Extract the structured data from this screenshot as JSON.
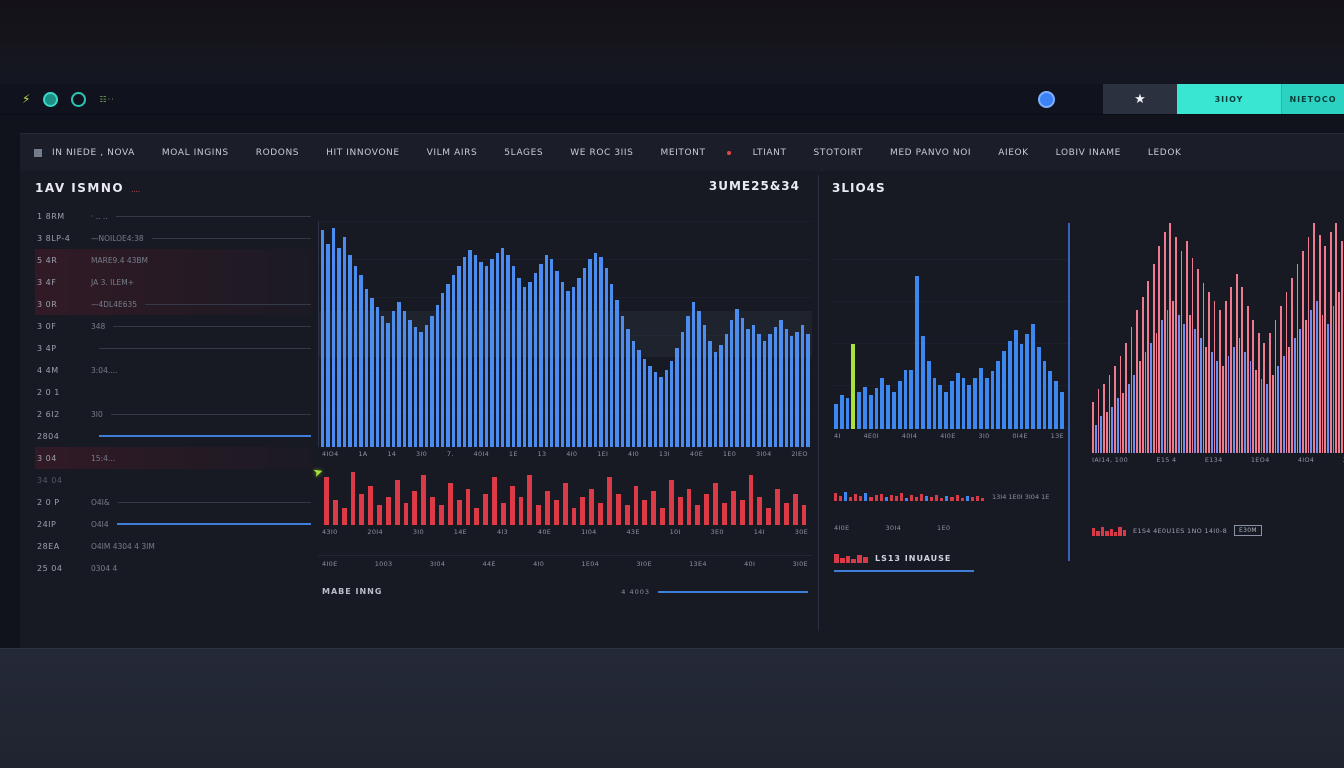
{
  "toolbar": {
    "accent": "#39e6d2",
    "right": {
      "teal_primary_label": "3IIOY",
      "teal_secondary_label": "NIETOCO"
    }
  },
  "nav": {
    "left_items": [
      "IN NIEDE , NOVA",
      "MOAL INGINS",
      "RODONS",
      "HIT INNOVONE",
      "VILM AIRS",
      "5LAGES",
      "WE ROC 3IIS",
      "MEITONT"
    ],
    "right_items": [
      "LTIANT",
      "STOTOIRT",
      "MED PANVO NOI",
      "AIEOK",
      "LOBIV INAME",
      "LEDOK"
    ]
  },
  "left_panel": {
    "title": "1AV ISMNO",
    "title_note": "....",
    "rows": [
      {
        "t": "1 8RM",
        "v": "· .. ..",
        "line": "grey",
        "glow": false,
        "dim": false
      },
      {
        "t": "3 8LP-4",
        "v": "—NOILOE4:38",
        "line": "grey",
        "glow": false,
        "dim": false
      },
      {
        "t": "5 4R",
        "v": "MARE9.4 43BM",
        "line": "none",
        "glow": true,
        "dim": false
      },
      {
        "t": "3 4F",
        "v": "JA 3. ILEM+",
        "line": "none",
        "glow": true,
        "dim": false
      },
      {
        "t": "3 0R",
        "v": "—4DL4E635",
        "line": "grey",
        "glow": true,
        "dim": false
      },
      {
        "t": "3 0F",
        "v": "348",
        "line": "grey",
        "glow": false,
        "dim": false
      },
      {
        "t": "3 4P",
        "v": "",
        "line": "grey",
        "glow": false,
        "dim": false
      },
      {
        "t": "4 4M",
        "v": "3:04....",
        "line": "none",
        "glow": false,
        "dim": false
      },
      {
        "t": "2 0 1",
        "v": "",
        "line": "none",
        "glow": false,
        "dim": false
      },
      {
        "t": "2 6I2",
        "v": "3I0",
        "line": "grey",
        "glow": false,
        "dim": false
      },
      {
        "t": "2804",
        "v": "",
        "line": "blue",
        "glow": false,
        "dim": false
      },
      {
        "t": "3 04",
        "v": "15:4...",
        "line": "none",
        "glow": true,
        "dim": false
      },
      {
        "t": "34 04",
        "v": "",
        "line": "none",
        "glow": false,
        "dim": true
      },
      {
        "t": "2 0 P",
        "v": "O4I&",
        "line": "grey",
        "glow": false,
        "dim": false
      },
      {
        "t": "24IP",
        "v": "O4I4",
        "line": "blue",
        "glow": false,
        "dim": false
      },
      {
        "t": "28EA",
        "v": "O4IM   4304   4 3IM",
        "line": "none",
        "glow": false,
        "dim": false
      },
      {
        "t": "25 04",
        "v": "0304  4",
        "line": "none",
        "glow": false,
        "dim": false
      }
    ]
  },
  "center_panel": {
    "header_value": "3UME25&34",
    "main_chart": {
      "colors": [
        "#4a8cf0"
      ],
      "values": [
        0.96,
        0.9,
        0.97,
        0.88,
        0.93,
        0.85,
        0.8,
        0.76,
        0.7,
        0.66,
        0.62,
        0.58,
        0.55,
        0.6,
        0.64,
        0.6,
        0.56,
        0.53,
        0.51,
        0.54,
        0.58,
        0.63,
        0.68,
        0.72,
        0.76,
        0.8,
        0.84,
        0.87,
        0.85,
        0.82,
        0.8,
        0.83,
        0.86,
        0.88,
        0.85,
        0.8,
        0.75,
        0.71,
        0.73,
        0.77,
        0.81,
        0.85,
        0.83,
        0.78,
        0.73,
        0.69,
        0.71,
        0.75,
        0.79,
        0.83,
        0.86,
        0.84,
        0.79,
        0.72,
        0.65,
        0.58,
        0.52,
        0.47,
        0.43,
        0.39,
        0.36,
        0.33,
        0.31,
        0.34,
        0.38,
        0.44,
        0.51,
        0.58,
        0.64,
        0.6,
        0.54,
        0.47,
        0.42,
        0.45,
        0.5,
        0.56,
        0.61,
        0.57,
        0.52,
        0.54,
        0.5,
        0.47,
        0.5,
        0.53,
        0.56,
        0.52,
        0.49,
        0.51,
        0.54,
        0.5
      ]
    },
    "main_ticks": [
      "4IO4",
      "1A",
      "14",
      "3I0",
      "7.",
      "40I4",
      "1E",
      "13",
      "4I0",
      "1EI",
      "4I0",
      "13I",
      "40E",
      "1E0",
      "3I04",
      "2IEO"
    ],
    "volume_chart": {
      "colors": [
        "#dd3a47"
      ],
      "values": [
        0.85,
        0.45,
        0.3,
        0.95,
        0.55,
        0.7,
        0.35,
        0.5,
        0.8,
        0.4,
        0.6,
        0.9,
        0.5,
        0.35,
        0.75,
        0.45,
        0.65,
        0.3,
        0.55,
        0.85,
        0.4,
        0.7,
        0.5,
        0.9,
        0.35,
        0.6,
        0.45,
        0.75,
        0.3,
        0.5,
        0.65,
        0.4,
        0.85,
        0.55,
        0.35,
        0.7,
        0.45,
        0.6,
        0.3,
        0.8,
        0.5,
        0.65,
        0.35,
        0.55,
        0.75,
        0.4,
        0.6,
        0.45,
        0.9,
        0.5,
        0.3,
        0.65,
        0.4,
        0.55,
        0.35
      ]
    },
    "volume_ticks": [
      "43I0",
      "20I4",
      "3I0",
      "14E",
      "4I3",
      "40E",
      "1I04",
      "43E",
      "10I",
      "3E0",
      "14I",
      "30E"
    ],
    "lower_ticks": [
      "4I0E",
      "1003",
      "3I04",
      "44E",
      "4I0",
      "1E04",
      "3I0E",
      "13E4",
      "40I",
      "3I0E"
    ],
    "footer_label": "MABE INNG",
    "footer_value": "4 4003"
  },
  "mid_panel": {
    "title": "3LIO4S",
    "chart": {
      "colors": [
        "#3d87f0"
      ],
      "highlight_index": 3,
      "highlight_color": "#a9e23b",
      "values": [
        0.15,
        0.2,
        0.18,
        0.5,
        0.22,
        0.25,
        0.2,
        0.24,
        0.3,
        0.26,
        0.22,
        0.28,
        0.35,
        0.35,
        0.9,
        0.55,
        0.4,
        0.3,
        0.26,
        0.22,
        0.28,
        0.33,
        0.3,
        0.26,
        0.3,
        0.36,
        0.3,
        0.34,
        0.4,
        0.46,
        0.52,
        0.58,
        0.5,
        0.56,
        0.62,
        0.48,
        0.4,
        0.34,
        0.28,
        0.22
      ]
    },
    "ticks": [
      "4I",
      "4E0I",
      "40I4",
      "4I0E",
      "3I0",
      "0I4E",
      "13E"
    ],
    "strip": {
      "colors": [
        "#d93a48",
        "#d93a48",
        "#3d87f0",
        "#d93a48"
      ],
      "values": [
        0.8,
        0.5,
        0.9,
        0.4,
        0.7,
        0.55,
        0.85,
        0.45,
        0.6,
        0.75,
        0.4,
        0.65,
        0.5,
        0.8,
        0.35,
        0.6,
        0.45,
        0.7,
        0.5,
        0.4,
        0.65,
        0.3,
        0.55,
        0.45,
        0.6,
        0.35,
        0.5,
        0.4,
        0.55,
        0.3
      ]
    },
    "strip_label": "13I4 1E0I   3I04  1E",
    "lower_ticks": [
      "4I0E",
      "30I4",
      "1E0"
    ],
    "footer_label": "LS13 INUAUSE",
    "footer_bars": {
      "colors": [
        "#d93a48"
      ],
      "values": [
        0.9,
        0.5,
        0.75,
        0.4,
        0.85,
        0.6
      ]
    }
  },
  "right_panel": {
    "chart": {
      "colors": [
        "#ee7b8f",
        "#6e8ff2",
        "#ee7b8f",
        "#6e8ff2",
        "#ee7b8f",
        "#ee7b8f"
      ],
      "values": [
        0.22,
        0.12,
        0.28,
        0.16,
        0.3,
        0.18,
        0.34,
        0.2,
        0.38,
        0.24,
        0.42,
        0.26,
        0.48,
        0.3,
        0.55,
        0.34,
        0.62,
        0.4,
        0.68,
        0.44,
        0.75,
        0.48,
        0.82,
        0.52,
        0.9,
        0.58,
        0.96,
        0.62,
        1.0,
        0.66,
        0.94,
        0.6,
        0.88,
        0.56,
        0.92,
        0.6,
        0.85,
        0.54,
        0.8,
        0.5,
        0.74,
        0.46,
        0.7,
        0.44,
        0.66,
        0.4,
        0.62,
        0.38,
        0.66,
        0.42,
        0.72,
        0.46,
        0.78,
        0.5,
        0.72,
        0.44,
        0.64,
        0.4,
        0.58,
        0.36,
        0.52,
        0.32,
        0.48,
        0.3,
        0.52,
        0.34,
        0.58,
        0.38,
        0.64,
        0.42,
        0.7,
        0.46,
        0.76,
        0.5,
        0.82,
        0.54,
        0.88,
        0.58,
        0.94,
        0.62,
        1.0,
        0.66,
        0.95,
        0.6,
        0.9,
        0.56,
        0.96,
        0.64,
        1.0,
        0.7,
        0.92,
        0.6,
        0.85,
        0.55,
        0.78,
        0.5
      ]
    },
    "ticks": [
      "IAI14, 100",
      "E15 4",
      "E134",
      "1EO4",
      "4IO4",
      "3E1"
    ],
    "legend_text": "E1S4 4E0U1ES 1NO 14I0-8",
    "legend_box": "E30M",
    "legend_bars": {
      "colors": [
        "#d93a48"
      ],
      "values": [
        0.8,
        0.45,
        0.9,
        0.5,
        0.7,
        0.4,
        0.85,
        0.55
      ]
    }
  }
}
